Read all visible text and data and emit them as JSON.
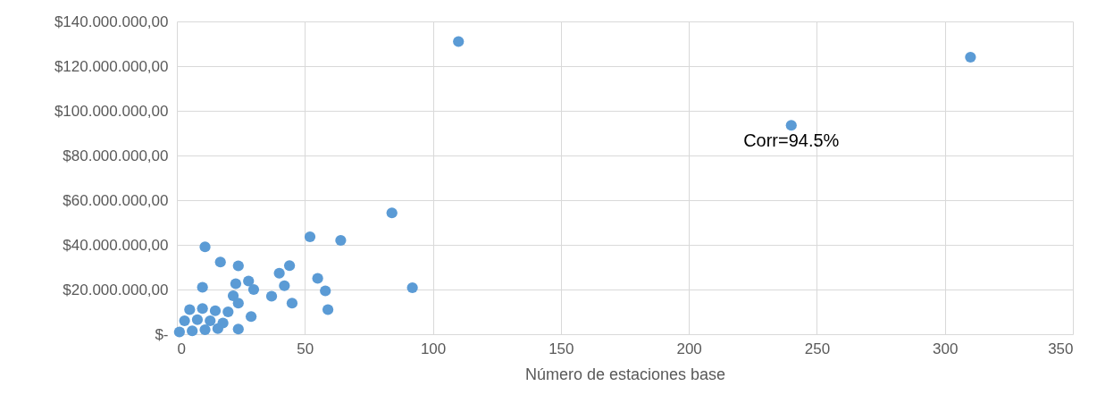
{
  "chart_data": {
    "type": "scatter",
    "xlabel": "Número de estaciones base",
    "x": [
      110,
      310,
      240,
      84,
      52,
      64,
      11,
      17,
      24,
      44,
      40,
      28,
      42,
      55,
      92,
      58,
      30,
      37,
      45,
      59,
      23,
      10,
      22,
      29,
      24,
      24,
      1,
      6,
      11,
      16,
      3,
      8,
      13,
      18,
      5,
      10,
      15,
      20
    ],
    "series": [
      {
        "color": "#5b9bd5",
        "values": [
          131000000,
          124000000,
          93500000,
          54300000,
          43600000,
          42000000,
          39100000,
          32300000,
          30600000,
          30700000,
          27300000,
          23800000,
          21700000,
          25000000,
          20800000,
          19400000,
          20000000,
          17000000,
          13900000,
          11000000,
          22600000,
          21000000,
          17200000,
          7900000,
          2300000,
          13900000,
          1000000,
          1500000,
          2000000,
          2500000,
          6000000,
          6500000,
          6000000,
          5000000,
          11000000,
          11500000,
          10500000,
          10000000
        ]
      }
    ],
    "xlim": [
      0,
      350
    ],
    "xticks": [
      0,
      50,
      100,
      150,
      200,
      250,
      300,
      350
    ],
    "ylim": [
      0,
      140000000
    ],
    "yticks": [
      {
        "value": 0,
        "label": "$-"
      },
      {
        "value": 20000000,
        "label": "$20.000.000,00"
      },
      {
        "value": 40000000,
        "label": "$40.000.000,00"
      },
      {
        "value": 60000000,
        "label": "$60.000.000,00"
      },
      {
        "value": 80000000,
        "label": "$80.000.000,00"
      },
      {
        "value": 100000000,
        "label": "$100.000.000,00"
      },
      {
        "value": 120000000,
        "label": "$120.000.000,00"
      },
      {
        "value": 140000000,
        "label": "$140.000.000,00"
      }
    ],
    "annotations": [
      {
        "text": "Corr=94.5%",
        "x": 240,
        "y": 93500000
      }
    ],
    "grid": true,
    "marker": "circle"
  }
}
